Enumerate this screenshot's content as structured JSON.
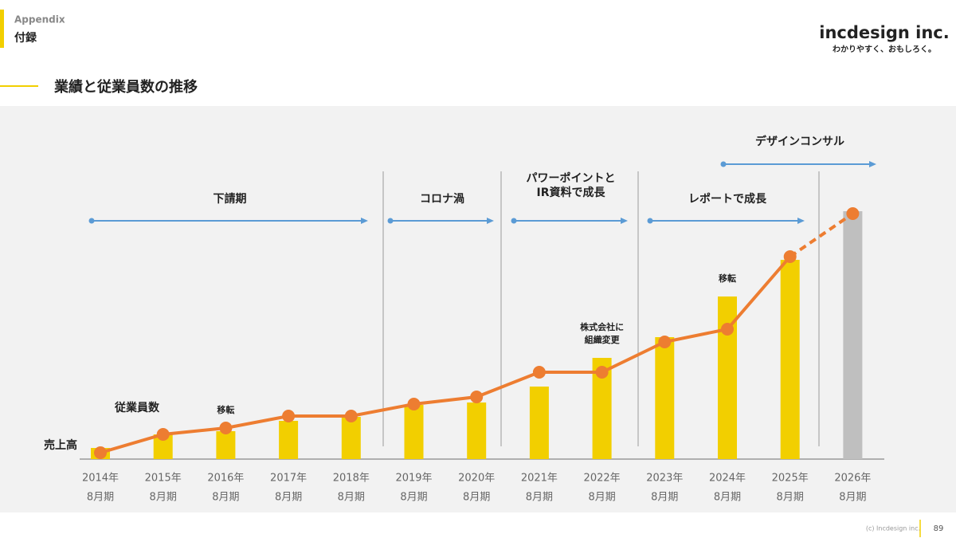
{
  "header": {
    "section": "Appendix",
    "subsection": "付録",
    "title": "業績と従業員数の推移",
    "logo": "incdesign inc.",
    "tagline": "わかりやすく、おもしろく。"
  },
  "footer": {
    "copyright": "(c) Incdesign inc.",
    "page": "89"
  },
  "chart_data": {
    "type": "bar-line",
    "categories": [
      [
        "2014年",
        "8月期"
      ],
      [
        "2015年",
        "8月期"
      ],
      [
        "2016年",
        "8月期"
      ],
      [
        "2017年",
        "8月期"
      ],
      [
        "2018年",
        "8月期"
      ],
      [
        "2019年",
        "8月期"
      ],
      [
        "2020年",
        "8月期"
      ],
      [
        "2021年",
        "8月期"
      ],
      [
        "2022年",
        "8月期"
      ],
      [
        "2023年",
        "8月期"
      ],
      [
        "2024年",
        "8月期"
      ],
      [
        "2025年",
        "8月期"
      ],
      [
        "2026年",
        "8月期"
      ]
    ],
    "series": [
      {
        "name": "売上高",
        "kind": "bar",
        "values": [
          14,
          31,
          35,
          48,
          53,
          68,
          71,
          91,
          127,
          153,
          204,
          250,
          311
        ],
        "colors": [
          "#f2cf00",
          "#f2cf00",
          "#f2cf00",
          "#f2cf00",
          "#f2cf00",
          "#f2cf00",
          "#f2cf00",
          "#f2cf00",
          "#f2cf00",
          "#f2cf00",
          "#f2cf00",
          "#f2cf00",
          "#bfbfbf"
        ]
      },
      {
        "name": "従業員数",
        "kind": "line",
        "color": "#ed7d31",
        "dashed_last_segment": true,
        "values": [
          8,
          31,
          39,
          54,
          54,
          69,
          78,
          109,
          109,
          147,
          163,
          254,
          308
        ]
      }
    ],
    "ylim": [
      0,
      320
    ],
    "annotations": [
      {
        "index": 2,
        "lines": [
          "移転"
        ]
      },
      {
        "index": 8,
        "lines": [
          "株式会社に",
          "組織変更"
        ]
      },
      {
        "index": 10,
        "lines": [
          "移転"
        ]
      }
    ],
    "phases": [
      {
        "lines": [
          "下請期"
        ]
      },
      {
        "lines": [
          "コロナ渦"
        ]
      },
      {
        "lines": [
          "パワーポイントと",
          "IR資料で成長"
        ]
      },
      {
        "lines": [
          "レポートで成長"
        ]
      },
      {
        "lines": [
          "デザインコンサル"
        ]
      }
    ]
  }
}
